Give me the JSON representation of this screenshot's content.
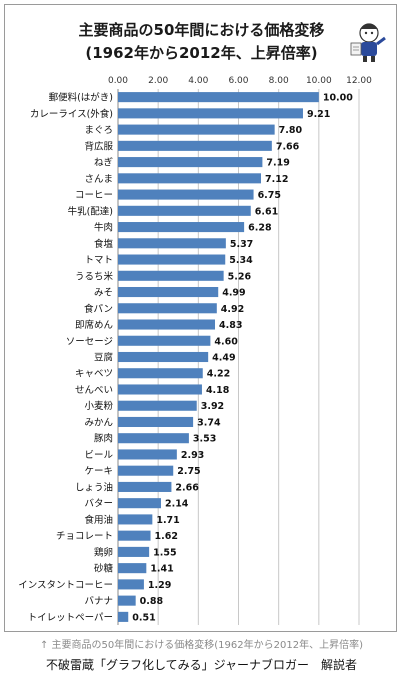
{
  "chart_data": {
    "type": "bar",
    "orientation": "horizontal",
    "title": "主要商品の50年間における価格変移",
    "subtitle": "(1962年から2012年、上昇倍率)",
    "xlim": [
      0,
      12
    ],
    "xticks": [
      "0.00",
      "2.00",
      "4.00",
      "6.00",
      "8.00",
      "10.00",
      "12.00"
    ],
    "grid": true,
    "bar_color": "#4f81bd",
    "categories": [
      "郵便料(はがき)",
      "カレーライス(外食)",
      "まぐろ",
      "背広服",
      "ねぎ",
      "さんま",
      "コーヒー",
      "牛乳(配達)",
      "牛肉",
      "食塩",
      "トマト",
      "うるち米",
      "みそ",
      "食パン",
      "即席めん",
      "ソーセージ",
      "豆腐",
      "キャベツ",
      "せんべい",
      "小麦粉",
      "みかん",
      "豚肉",
      "ビール",
      "ケーキ",
      "しょう油",
      "バター",
      "食用油",
      "チョコレート",
      "鶏卵",
      "砂糖",
      "インスタントコーヒー",
      "バナナ",
      "トイレットペーパー"
    ],
    "values": [
      10.0,
      9.21,
      7.8,
      7.66,
      7.19,
      7.12,
      6.75,
      6.61,
      6.28,
      5.37,
      5.34,
      5.26,
      4.99,
      4.92,
      4.83,
      4.6,
      4.49,
      4.22,
      4.18,
      3.92,
      3.74,
      3.53,
      2.93,
      2.75,
      2.66,
      2.14,
      1.71,
      1.62,
      1.55,
      1.41,
      1.29,
      0.88,
      0.51
    ],
    "value_labels": [
      "10.00",
      "9.21",
      "7.80",
      "7.66",
      "7.19",
      "7.12",
      "6.75",
      "6.61",
      "6.28",
      "5.37",
      "5.34",
      "5.26",
      "4.99",
      "4.92",
      "4.83",
      "4.60",
      "4.49",
      "4.22",
      "4.18",
      "3.92",
      "3.74",
      "3.53",
      "2.93",
      "2.75",
      "2.66",
      "2.14",
      "1.71",
      "1.62",
      "1.55",
      "1.41",
      "1.29",
      "0.88",
      "0.51"
    ]
  },
  "caption": "↑ 主要商品の50年間における価格変移(1962年から2012年、上昇倍率)",
  "credit": "不破雷蔵「グラフ化してみる」ジャーナブロガー　解説者"
}
